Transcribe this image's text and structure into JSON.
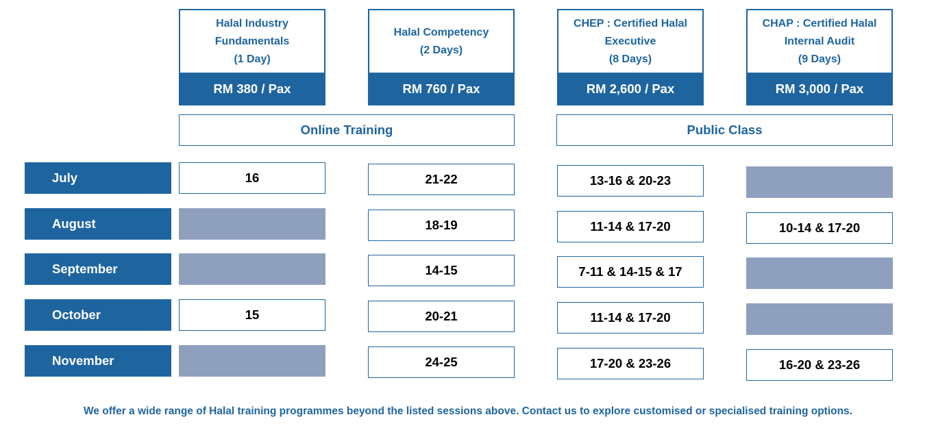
{
  "courses": [
    {
      "name": "Halal Industry\nFundamentals\n(1 Day)",
      "price": "RM 380 / Pax"
    },
    {
      "name": "Halal Competency\n(2 Days)",
      "price": "RM 760 / Pax"
    },
    {
      "name": "CHEP : Certified Halal\nExecutive\n(8 Days)",
      "price": "RM 2,600 / Pax"
    },
    {
      "name": "CHAP : Certified Halal\nInternal Audit\n(9 Days)",
      "price": "RM 3,000 / Pax"
    }
  ],
  "modes": {
    "online": "Online Training",
    "public": "Public Class"
  },
  "months": [
    "July",
    "August",
    "September",
    "October",
    "November"
  ],
  "schedule": [
    [
      "16",
      "21-22",
      "13-16 & 20-23",
      ""
    ],
    [
      "",
      "18-19",
      "11-14 & 17-20",
      "10-14 & 17-20"
    ],
    [
      "",
      "14-15",
      "7-11 & 14-15 & 17",
      ""
    ],
    [
      "15",
      "20-21",
      "11-14 & 17-20",
      ""
    ],
    [
      "",
      "24-25",
      "17-20 & 23-26",
      "16-20 & 23-26"
    ]
  ],
  "colors": {
    "primary": "#1e65a0",
    "empty_cell": "#8fa0bf"
  },
  "footer": "We offer a wide range of Halal training programmes beyond the listed sessions above. Contact us to explore customised or specialised training options."
}
